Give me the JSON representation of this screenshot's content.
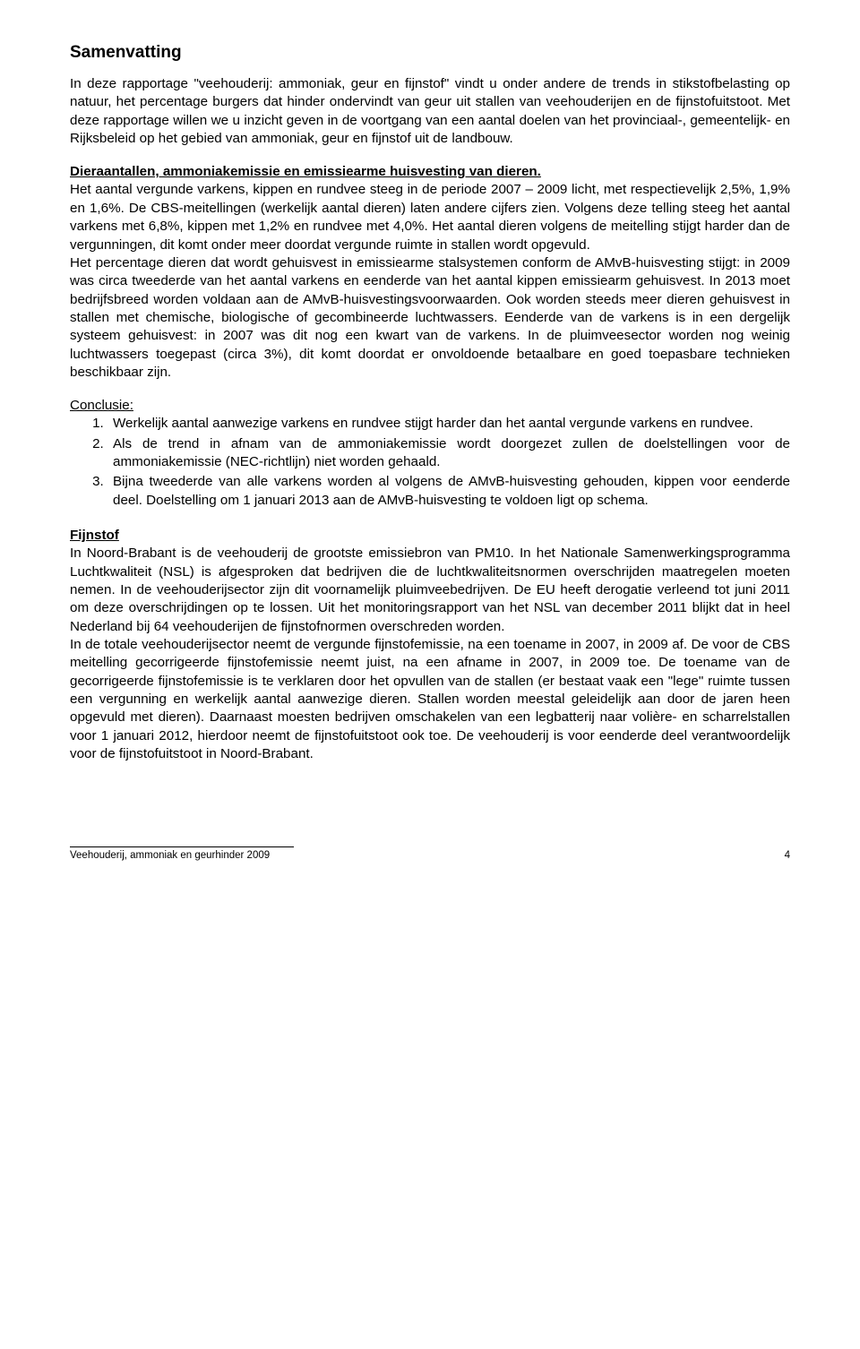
{
  "title": "Samenvatting",
  "intro": "In deze rapportage \"veehouderij: ammoniak, geur en fijnstof\" vindt u onder andere de trends in stikstofbelasting op natuur, het percentage burgers dat hinder ondervindt van geur uit stallen van veehouderijen en de fijnstofuitstoot. Met deze rapportage willen we u inzicht geven in de voortgang van een aantal doelen van het provinciaal-, gemeentelijk- en Rijksbeleid op het gebied van ammoniak, geur en fijnstof uit de landbouw.",
  "section1_heading": "Dieraantallen, ammoniakemissie en emissiearme huisvesting van dieren.",
  "section1_p1": "Het aantal vergunde varkens, kippen en rundvee steeg in de periode 2007 – 2009 licht, met respectievelijk 2,5%, 1,9% en 1,6%. De CBS-meitellingen (werkelijk aantal dieren) laten andere cijfers zien. Volgens deze telling steeg het aantal varkens met 6,8%, kippen met 1,2% en rundvee met 4,0%. Het aantal dieren volgens de meitelling stijgt harder dan de vergunningen, dit komt onder meer doordat vergunde ruimte in stallen wordt opgevuld.",
  "section1_p2": "Het percentage dieren dat wordt gehuisvest in emissiearme stalsystemen conform de AMvB-huisvesting stijgt: in 2009 was circa tweederde van het aantal varkens en eenderde van het aantal kippen emissiearm gehuisvest. In 2013 moet bedrijfsbreed worden voldaan aan de AMvB-huisvestingsvoorwaarden. Ook worden steeds meer dieren gehuisvest in stallen met chemische, biologische of gecombineerde luchtwassers. Eenderde van de varkens is in een dergelijk systeem gehuisvest: in 2007 was dit nog een kwart van de varkens. In de pluimveesector worden nog weinig luchtwassers toegepast (circa 3%), dit komt doordat er onvoldoende betaalbare en goed toepasbare technieken beschikbaar zijn.",
  "conclusie_label": "Conclusie:",
  "conclusie_items": [
    "Werkelijk aantal aanwezige varkens en rundvee stijgt harder dan het aantal vergunde varkens en rundvee.",
    "Als de trend in afnam van de ammoniakemissie wordt doorgezet zullen de doelstellingen voor de ammoniakemissie (NEC-richtlijn) niet worden gehaald.",
    "Bijna tweederde van alle varkens worden al volgens de AMvB-huisvesting gehouden, kippen voor eenderde deel. Doelstelling om 1 januari 2013 aan de AMvB-huisvesting te voldoen ligt op schema."
  ],
  "section2_heading": "Fijnstof",
  "section2_p1": "In Noord-Brabant is de veehouderij de grootste emissiebron van PM10. In het Nationale Samenwerkingsprogramma Luchtkwaliteit (NSL) is afgesproken dat bedrijven die de luchtkwaliteitsnormen overschrijden maatregelen moeten nemen. In de veehouderijsector zijn dit voornamelijk pluimveebedrijven. De EU heeft derogatie verleend tot juni 2011 om deze overschrijdingen op te lossen. Uit het monitoringsrapport van het NSL van december 2011 blijkt dat in heel Nederland bij 64 veehouderijen de fijnstofnormen overschreden worden.",
  "section2_p2": "In de totale veehouderijsector neemt de vergunde fijnstofemissie, na een toename in 2007, in 2009 af. De voor de CBS meitelling gecorrigeerde fijnstofemissie neemt juist, na een afname in 2007, in 2009 toe. De toename van de gecorrigeerde fijnstofemissie is te verklaren door het opvullen van de stallen (er bestaat vaak een \"lege\" ruimte tussen een vergunning en werkelijk aantal aanwezige dieren. Stallen worden meestal geleidelijk aan door de jaren heen opgevuld met dieren). Daarnaast moesten bedrijven omschakelen van een legbatterij naar volière- en scharrelstallen voor 1 januari 2012, hierdoor neemt de fijnstofuitstoot ook toe. De veehouderij is voor eenderde deel verantwoordelijk voor de fijnstofuitstoot in Noord-Brabant.",
  "footer_text": "Veehouderij, ammoniak en geurhinder 2009",
  "page_number": "4"
}
